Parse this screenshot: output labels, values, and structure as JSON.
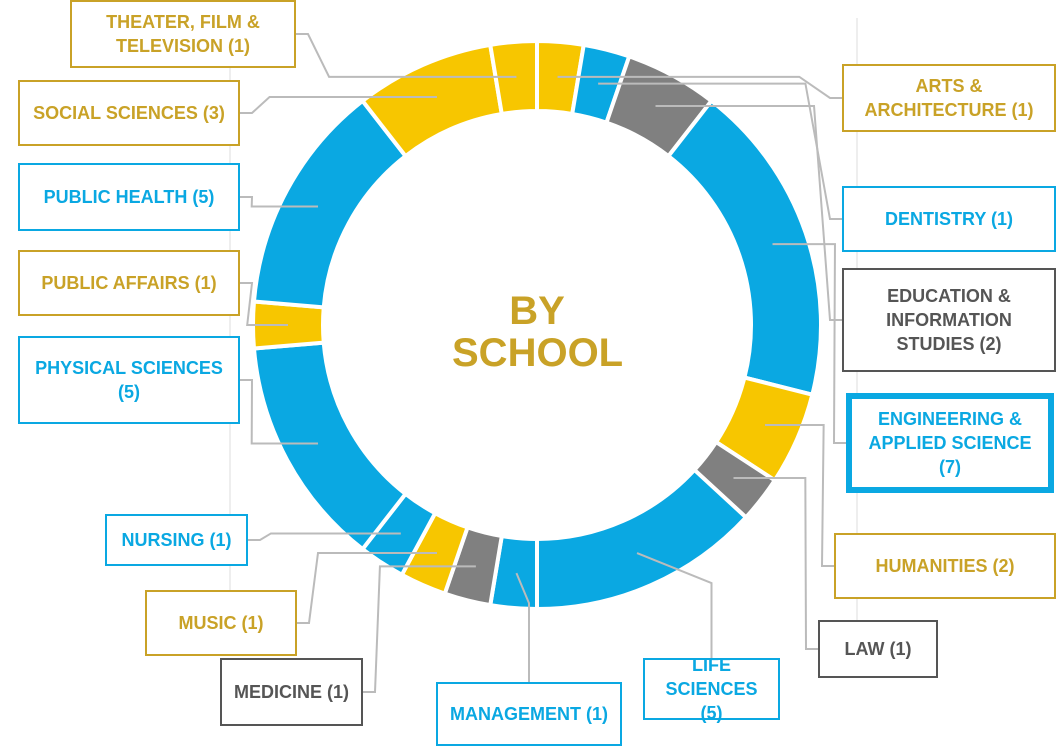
{
  "chart_data": {
    "type": "pie",
    "title": "BY SCHOOL",
    "donut": true,
    "categories": [
      "ARTS & ARCHITECTURE",
      "DENTISTRY",
      "EDUCATION & INFORMATION STUDIES",
      "ENGINEERING & APPLIED SCIENCE",
      "HUMANITIES",
      "LAW",
      "LIFE SCIENCES",
      "MANAGEMENT",
      "MEDICINE",
      "MUSIC",
      "NURSING",
      "PHYSICAL SCIENCES",
      "PUBLIC AFFAIRS",
      "PUBLIC HEALTH",
      "SOCIAL SCIENCES",
      "THEATER, FILM & TELEVISION"
    ],
    "values": [
      1,
      1,
      2,
      7,
      2,
      1,
      5,
      1,
      1,
      1,
      1,
      5,
      1,
      5,
      3,
      1
    ],
    "value_labels": [
      "(1)",
      "(1)",
      "(2)",
      "(7)",
      "(2)",
      "(1)",
      "(5)",
      "(1)",
      "(1)",
      "(1)",
      "(1)",
      "(5)",
      "(1)",
      "(5)",
      "(3)",
      "(1)"
    ],
    "colors": [
      "#f7c600",
      "#0aa8e2",
      "#808080",
      "#0aa8e2",
      "#f7c600",
      "#808080",
      "#0aa8e2",
      "#0aa8e2",
      "#808080",
      "#f7c600",
      "#0aa8e2",
      "#0aa8e2",
      "#f7c600",
      "#0aa8e2",
      "#f7c600",
      "#f7c600"
    ]
  }
}
